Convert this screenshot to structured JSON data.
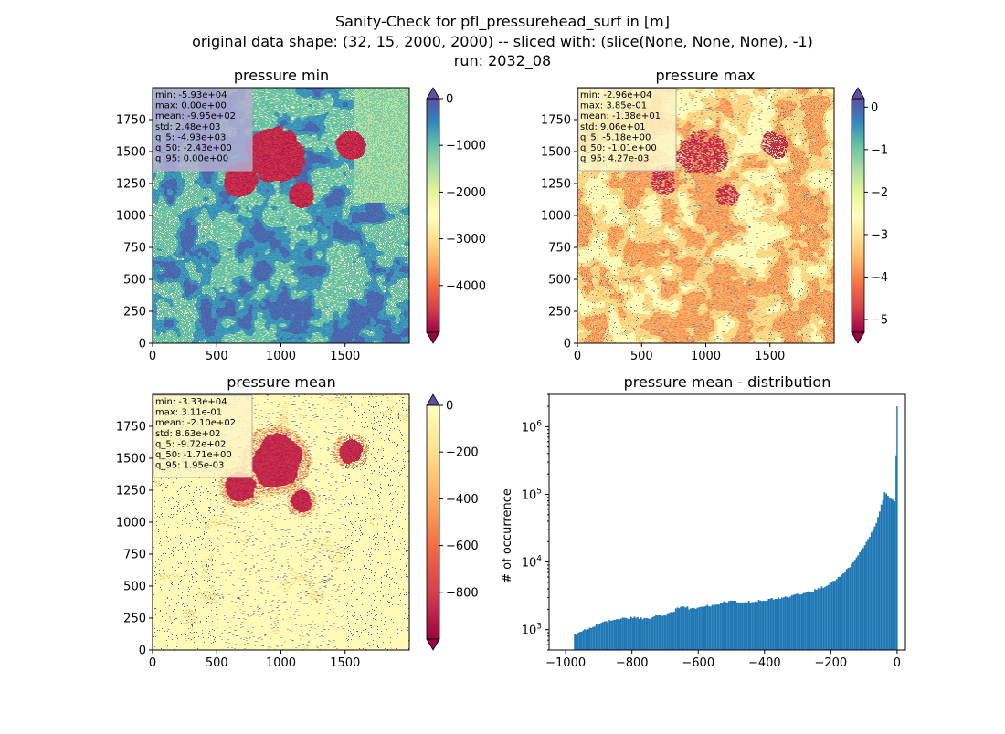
{
  "figure": {
    "title_lines": [
      "Sanity-Check for pfl_pressurehead_surf in [m]",
      "original data shape: (32, 15, 2000, 2000) -- sliced with: (slice(None, None, None), -1)",
      "run: 2032_08"
    ]
  },
  "chart_data": [
    {
      "type": "heatmap",
      "title": "pressure min",
      "xlim": [
        0,
        2000
      ],
      "ylim": [
        0,
        2000
      ],
      "xticks": [
        "0",
        "500",
        "1000",
        "1500"
      ],
      "yticks": [
        "0",
        "250",
        "500",
        "750",
        "1000",
        "1250",
        "1500",
        "1750"
      ],
      "colormap": "Spectral",
      "colorbar": {
        "min": -5000,
        "max": 0,
        "ticks": [
          "0",
          "−1000",
          "−2000",
          "−3000",
          "−4000"
        ],
        "extend": "both"
      },
      "stats": [
        "min: -5.93e+04",
        "max: 0.00e+00",
        "mean: -9.95e+02",
        "std: 2.48e+03",
        "q_5: -4.93e+03",
        "q_50: -2.43e+00",
        "q_95: 0.00e+00"
      ],
      "stats_box_color": "#b4aed2"
    },
    {
      "type": "heatmap",
      "title": "pressure max",
      "xlim": [
        0,
        2000
      ],
      "ylim": [
        0,
        2000
      ],
      "xticks": [
        "0",
        "500",
        "1000",
        "1500"
      ],
      "yticks": [
        "0",
        "250",
        "500",
        "750",
        "1000",
        "1250",
        "1500",
        "1750"
      ],
      "colormap": "Spectral",
      "colorbar": {
        "min": -5.3,
        "max": 0.2,
        "ticks": [
          "0",
          "−1",
          "−2",
          "−3",
          "−4",
          "−5"
        ],
        "extend": "both"
      },
      "stats": [
        "min: -2.96e+04",
        "max: 3.85e-01",
        "mean: -1.38e+01",
        "std: 9.06e+01",
        "q_5: -5.18e+00",
        "q_50: -1.01e+00",
        "q_95: 4.27e-03"
      ],
      "stats_box_color": "#fdf3c4"
    },
    {
      "type": "heatmap",
      "title": "pressure mean",
      "xlim": [
        0,
        2000
      ],
      "ylim": [
        0,
        2000
      ],
      "xticks": [
        "0",
        "500",
        "1000",
        "1500"
      ],
      "yticks": [
        "0",
        "250",
        "500",
        "750",
        "1000",
        "1250",
        "1500",
        "1750"
      ],
      "colormap": "Spectral",
      "colorbar": {
        "min": -1000,
        "max": 0,
        "ticks": [
          "0",
          "−200",
          "−400",
          "−600",
          "−800"
        ],
        "extend": "both"
      },
      "stats": [
        "min: -3.33e+04",
        "max: 3.11e-01",
        "mean: -2.10e+02",
        "std: 8.63e+02",
        "q_5: -9.72e+02",
        "q_50: -1.71e+00",
        "q_95: 1.95e-03"
      ],
      "stats_box_color": "#fdf3c4"
    },
    {
      "type": "bar",
      "title": "pressure mean - distribution",
      "ylabel": "# of occurrence",
      "yscale": "log",
      "xlim": [
        -1050,
        25
      ],
      "ylim": [
        500,
        3000000
      ],
      "xticks": [
        "−1000",
        "−800",
        "−600",
        "−400",
        "−200",
        "0"
      ],
      "yticks": [
        "10^3",
        "10^4",
        "10^5",
        "10^6"
      ],
      "bar_color": "#1f77b4",
      "bins": {
        "start": -975,
        "width": 5
      },
      "profile": [
        [
          -975,
          800
        ],
        [
          -960,
          900
        ],
        [
          -940,
          1000
        ],
        [
          -900,
          1200
        ],
        [
          -870,
          1350
        ],
        [
          -840,
          1450
        ],
        [
          -820,
          1500
        ],
        [
          -780,
          1500
        ],
        [
          -760,
          1450
        ],
        [
          -720,
          1600
        ],
        [
          -700,
          1650
        ],
        [
          -680,
          1800
        ],
        [
          -660,
          2100
        ],
        [
          -650,
          2300
        ],
        [
          -640,
          2200
        ],
        [
          -620,
          2000
        ],
        [
          -600,
          2100
        ],
        [
          -560,
          2300
        ],
        [
          -520,
          2550
        ],
        [
          -500,
          2600
        ],
        [
          -460,
          2550
        ],
        [
          -420,
          2650
        ],
        [
          -380,
          2850
        ],
        [
          -340,
          3000
        ],
        [
          -300,
          3300
        ],
        [
          -260,
          3700
        ],
        [
          -220,
          4300
        ],
        [
          -200,
          4900
        ],
        [
          -180,
          5700
        ],
        [
          -160,
          7000
        ],
        [
          -140,
          8800
        ],
        [
          -120,
          12000
        ],
        [
          -100,
          17000
        ],
        [
          -80,
          25000
        ],
        [
          -60,
          42000
        ],
        [
          -45,
          75000
        ],
        [
          -37,
          110000
        ],
        [
          -30,
          100000
        ],
        [
          -20,
          85000
        ],
        [
          -10,
          80000
        ],
        [
          -5,
          75000
        ],
        [
          0,
          2000000
        ]
      ]
    }
  ]
}
